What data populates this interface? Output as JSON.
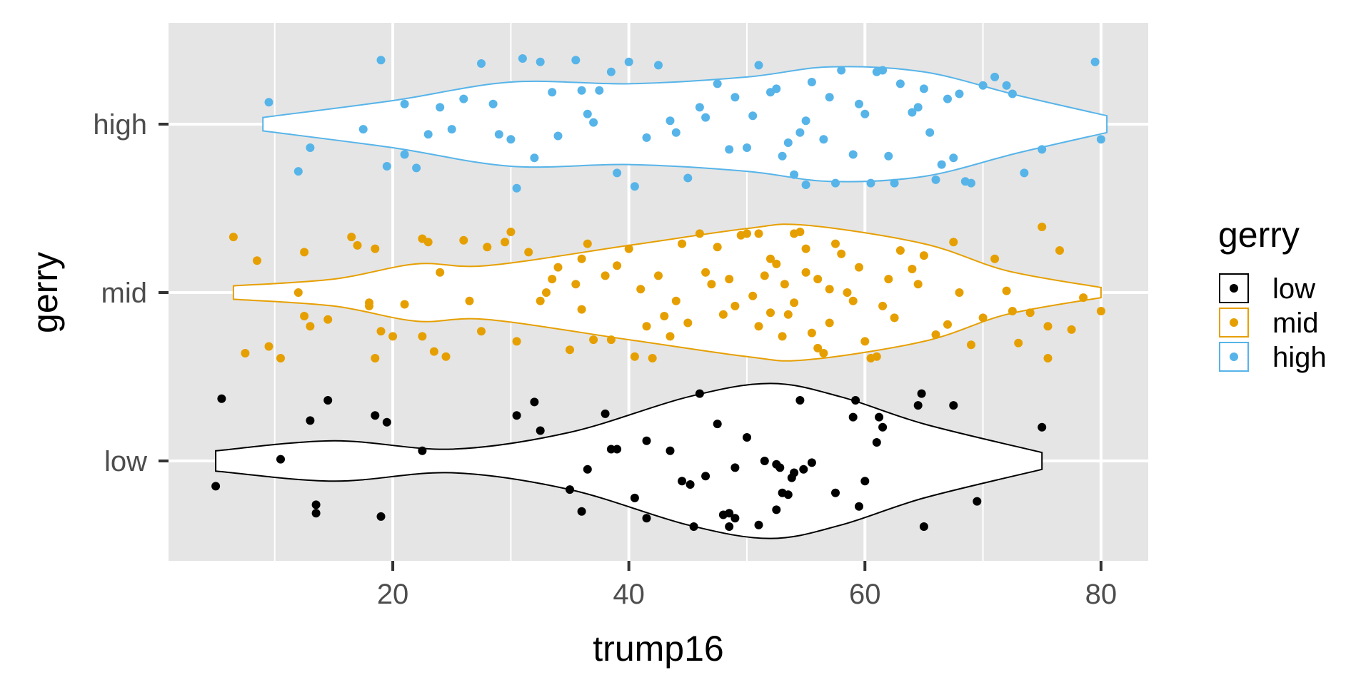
{
  "chart_data": {
    "type": "violin",
    "xlabel": "trump16",
    "ylabel": "gerry",
    "xlim": [
      1,
      84
    ],
    "x_ticks": [
      20,
      40,
      60,
      80
    ],
    "x_minor": [
      10,
      30,
      50,
      70
    ],
    "categories": [
      "low",
      "mid",
      "high"
    ],
    "grid": true,
    "legend": {
      "title": "gerry",
      "position": "right",
      "entries": [
        "low",
        "mid",
        "high"
      ]
    },
    "colors": {
      "low": "#000000",
      "mid": "#E69F00",
      "high": "#56B4E9",
      "panel": "#E5E5E5",
      "grid": "#FFFFFF"
    },
    "series": [
      {
        "name": "low",
        "violin": {
          "y": [
            5,
            15,
            25,
            35,
            45,
            52,
            58,
            65,
            75
          ],
          "half_width": [
            0.06,
            0.12,
            0.07,
            0.17,
            0.38,
            0.46,
            0.38,
            0.22,
            0.05
          ]
        },
        "points": [
          [
            5.5,
            0.37
          ],
          [
            5,
            -0.15
          ],
          [
            10.5,
            0.01
          ],
          [
            13,
            0.24
          ],
          [
            13.5,
            -0.26
          ],
          [
            13.5,
            -0.31
          ],
          [
            14.5,
            0.36
          ],
          [
            18.5,
            0.27
          ],
          [
            19,
            -0.33
          ],
          [
            19.5,
            0.23
          ],
          [
            22.5,
            0.06
          ],
          [
            30.5,
            0.27
          ],
          [
            32,
            0.35
          ],
          [
            32.5,
            0.18
          ],
          [
            35,
            -0.17
          ],
          [
            36,
            -0.3
          ],
          [
            36.5,
            -0.05
          ],
          [
            38,
            0.28
          ],
          [
            38.5,
            0.07
          ],
          [
            39,
            0.07
          ],
          [
            40.5,
            -0.22
          ],
          [
            41.5,
            0.12
          ],
          [
            41.5,
            -0.34
          ],
          [
            43.5,
            0.06
          ],
          [
            44.5,
            -0.12
          ],
          [
            45.2,
            -0.14
          ],
          [
            45.5,
            -0.39
          ],
          [
            46,
            0.4
          ],
          [
            46.5,
            -0.09
          ],
          [
            47.5,
            0.22
          ],
          [
            48,
            -0.32
          ],
          [
            48.5,
            -0.31
          ],
          [
            48.5,
            -0.39
          ],
          [
            49,
            -0.34
          ],
          [
            49,
            -0.04
          ],
          [
            50,
            0.14
          ],
          [
            51,
            -0.38
          ],
          [
            51.5,
            0.0
          ],
          [
            52.5,
            -0.29
          ],
          [
            52.5,
            -0.02
          ],
          [
            52.8,
            -0.04
          ],
          [
            53,
            -0.19
          ],
          [
            53.5,
            -0.2
          ],
          [
            53.8,
            -0.1
          ],
          [
            54,
            -0.07
          ],
          [
            54.5,
            0.36
          ],
          [
            54.8,
            -0.05
          ],
          [
            55.5,
            -0.01
          ],
          [
            57.5,
            -0.19
          ],
          [
            59,
            0.26
          ],
          [
            59.2,
            0.36
          ],
          [
            59.5,
            -0.27
          ],
          [
            60,
            -0.12
          ],
          [
            61.2,
            0.26
          ],
          [
            61,
            0.11
          ],
          [
            61.5,
            0.2
          ],
          [
            64.5,
            0.33
          ],
          [
            64.8,
            0.4
          ],
          [
            65,
            -0.39
          ],
          [
            67.5,
            0.33
          ],
          [
            69.5,
            -0.24
          ],
          [
            75,
            0.2
          ]
        ]
      },
      {
        "name": "mid",
        "violin": {
          "y": [
            6.5,
            15,
            22,
            28,
            40,
            50,
            55,
            65,
            72,
            80
          ],
          "half_width": [
            0.04,
            0.08,
            0.17,
            0.16,
            0.28,
            0.38,
            0.4,
            0.29,
            0.13,
            0.03
          ]
        },
        "points": [
          [
            6.5,
            0.33
          ],
          [
            7.5,
            -0.36
          ],
          [
            8.5,
            0.19
          ],
          [
            9.5,
            -0.32
          ],
          [
            10.5,
            -0.39
          ],
          [
            12,
            0.0
          ],
          [
            12.5,
            0.24
          ],
          [
            12.5,
            -0.14
          ],
          [
            13,
            -0.2
          ],
          [
            14.5,
            -0.16
          ],
          [
            16.5,
            0.33
          ],
          [
            17,
            0.28
          ],
          [
            18,
            -0.06
          ],
          [
            18,
            -0.08
          ],
          [
            18.5,
            -0.39
          ],
          [
            18.5,
            0.26
          ],
          [
            19,
            -0.23
          ],
          [
            20,
            -0.26
          ],
          [
            22.5,
            0.32
          ],
          [
            23,
            0.3
          ],
          [
            22.5,
            -0.26
          ],
          [
            23.5,
            -0.35
          ],
          [
            24.5,
            -0.38
          ],
          [
            26,
            0.31
          ],
          [
            28,
            0.27
          ],
          [
            29.5,
            0.3
          ],
          [
            30,
            0.36
          ],
          [
            31.5,
            0.24
          ],
          [
            32.5,
            -0.05
          ],
          [
            33,
            0.0
          ],
          [
            34,
            0.15
          ],
          [
            35,
            -0.34
          ],
          [
            36.5,
            0.29
          ],
          [
            37,
            -0.28
          ],
          [
            38.5,
            -0.28
          ],
          [
            40,
            0.26
          ],
          [
            40.5,
            -0.38
          ],
          [
            41.5,
            -0.2
          ],
          [
            42,
            -0.39
          ],
          [
            43,
            -0.14
          ],
          [
            44.5,
            0.29
          ],
          [
            46,
            0.35
          ],
          [
            47.5,
            0.27
          ],
          [
            48,
            -0.13
          ],
          [
            48.5,
            0.08
          ],
          [
            49.5,
            0.34
          ],
          [
            50,
            0.35
          ],
          [
            51,
            0.35
          ],
          [
            51.5,
            0.1
          ],
          [
            52,
            -0.12
          ],
          [
            52.5,
            0.17
          ],
          [
            53,
            -0.26
          ],
          [
            53.5,
            -0.13
          ],
          [
            54,
            0.35
          ],
          [
            54.5,
            0.36
          ],
          [
            55,
            0.26
          ],
          [
            55.5,
            -0.24
          ],
          [
            56,
            -0.33
          ],
          [
            56.5,
            -0.36
          ],
          [
            57,
            -0.18
          ],
          [
            57.5,
            0.29
          ],
          [
            58,
            0.23
          ],
          [
            59,
            -0.05
          ],
          [
            60,
            -0.29
          ],
          [
            60.5,
            -0.39
          ],
          [
            61,
            -0.38
          ],
          [
            62,
            0.08
          ],
          [
            63,
            0.25
          ],
          [
            64,
            0.14
          ],
          [
            65,
            0.22
          ],
          [
            66,
            -0.25
          ],
          [
            67,
            -0.19
          ],
          [
            67.5,
            0.3
          ],
          [
            68,
            0.0
          ],
          [
            69,
            -0.31
          ],
          [
            70,
            -0.15
          ],
          [
            71,
            0.2
          ],
          [
            72,
            0.01
          ],
          [
            72.5,
            -0.11
          ],
          [
            73,
            -0.3
          ],
          [
            74,
            -0.12
          ],
          [
            75,
            0.39
          ],
          [
            75.5,
            -0.2
          ],
          [
            75.5,
            -0.39
          ],
          [
            76.5,
            0.25
          ],
          [
            77.5,
            -0.22
          ],
          [
            78.5,
            -0.03
          ],
          [
            80,
            -0.11
          ],
          [
            35.5,
            0.05
          ],
          [
            38,
            0.1
          ],
          [
            41,
            0.02
          ],
          [
            44,
            -0.05
          ],
          [
            46.5,
            0.12
          ],
          [
            50.5,
            -0.02
          ],
          [
            53.2,
            0.05
          ],
          [
            56,
            0.08
          ],
          [
            58.5,
            0.0
          ],
          [
            61.5,
            -0.08
          ],
          [
            64.5,
            0.05
          ],
          [
            30.5,
            -0.29
          ],
          [
            27.5,
            -0.23
          ],
          [
            33.5,
            0.08
          ],
          [
            36,
            -0.1
          ],
          [
            39,
            0.16
          ],
          [
            42.5,
            0.1
          ],
          [
            45,
            -0.18
          ],
          [
            47,
            0.05
          ],
          [
            49,
            -0.08
          ],
          [
            52,
            0.2
          ],
          [
            54,
            -0.06
          ],
          [
            55,
            0.12
          ],
          [
            57,
            0.02
          ],
          [
            59.5,
            0.15
          ],
          [
            62.5,
            -0.15
          ],
          [
            26.5,
            -0.05
          ],
          [
            24,
            0.12
          ],
          [
            21,
            -0.07
          ],
          [
            36,
            0.2
          ],
          [
            43.5,
            -0.26
          ],
          [
            51,
            -0.2
          ]
        ]
      },
      {
        "name": "high",
        "violin": {
          "y": [
            9,
            20,
            30,
            40,
            50,
            57,
            65,
            73,
            80.5
          ],
          "half_width": [
            0.04,
            0.14,
            0.25,
            0.24,
            0.28,
            0.34,
            0.31,
            0.17,
            0.05
          ]
        },
        "points": [
          [
            9.5,
            0.13
          ],
          [
            12,
            -0.28
          ],
          [
            13,
            -0.14
          ],
          [
            17.5,
            -0.03
          ],
          [
            19,
            0.38
          ],
          [
            19.5,
            -0.25
          ],
          [
            21,
            0.12
          ],
          [
            21,
            -0.18
          ],
          [
            22,
            -0.26
          ],
          [
            23,
            -0.06
          ],
          [
            24,
            0.1
          ],
          [
            25,
            -0.03
          ],
          [
            26,
            0.15
          ],
          [
            27.5,
            0.36
          ],
          [
            28.5,
            0.12
          ],
          [
            29,
            -0.06
          ],
          [
            30,
            -0.09
          ],
          [
            30.5,
            -0.38
          ],
          [
            31,
            0.39
          ],
          [
            32,
            -0.2
          ],
          [
            32.5,
            0.37
          ],
          [
            33.5,
            0.19
          ],
          [
            34,
            -0.07
          ],
          [
            35.5,
            0.38
          ],
          [
            36,
            0.2
          ],
          [
            36.5,
            0.06
          ],
          [
            37,
            0.01
          ],
          [
            37.5,
            0.2
          ],
          [
            38.5,
            0.31
          ],
          [
            39,
            -0.29
          ],
          [
            40,
            0.37
          ],
          [
            40.5,
            -0.37
          ],
          [
            41.5,
            -0.08
          ],
          [
            42.5,
            0.35
          ],
          [
            43.5,
            0.02
          ],
          [
            45,
            -0.32
          ],
          [
            46.5,
            0.04
          ],
          [
            47.5,
            0.24
          ],
          [
            48.5,
            -0.15
          ],
          [
            49,
            0.16
          ],
          [
            50,
            -0.14
          ],
          [
            50.5,
            0.05
          ],
          [
            51,
            0.35
          ],
          [
            52,
            0.19
          ],
          [
            52.5,
            0.21
          ],
          [
            53,
            -0.19
          ],
          [
            54,
            -0.3
          ],
          [
            54.5,
            -0.05
          ],
          [
            55,
            -0.36
          ],
          [
            55.5,
            0.25
          ],
          [
            56.5,
            -0.09
          ],
          [
            57,
            0.16
          ],
          [
            57.5,
            -0.35
          ],
          [
            58,
            0.32
          ],
          [
            59,
            -0.18
          ],
          [
            59.5,
            0.12
          ],
          [
            60,
            0.06
          ],
          [
            60.5,
            -0.35
          ],
          [
            61,
            0.31
          ],
          [
            61.5,
            0.32
          ],
          [
            62,
            -0.19
          ],
          [
            62.5,
            -0.35
          ],
          [
            63,
            0.24
          ],
          [
            64,
            0.07
          ],
          [
            65,
            0.21
          ],
          [
            66,
            -0.33
          ],
          [
            67,
            0.15
          ],
          [
            67.5,
            -0.2
          ],
          [
            68,
            0.18
          ],
          [
            69,
            -0.35
          ],
          [
            70,
            0.23
          ],
          [
            71,
            0.28
          ],
          [
            72,
            0.23
          ],
          [
            72.5,
            0.18
          ],
          [
            73.5,
            -0.29
          ],
          [
            75,
            -0.15
          ],
          [
            79.5,
            0.37
          ],
          [
            80,
            -0.09
          ],
          [
            53.5,
            -0.11
          ],
          [
            55,
            0.02
          ],
          [
            44,
            -0.05
          ],
          [
            46,
            0.1
          ],
          [
            64.5,
            0.1
          ],
          [
            65.5,
            -0.05
          ],
          [
            66.5,
            -0.24
          ],
          [
            68.5,
            -0.34
          ]
        ]
      }
    ]
  }
}
